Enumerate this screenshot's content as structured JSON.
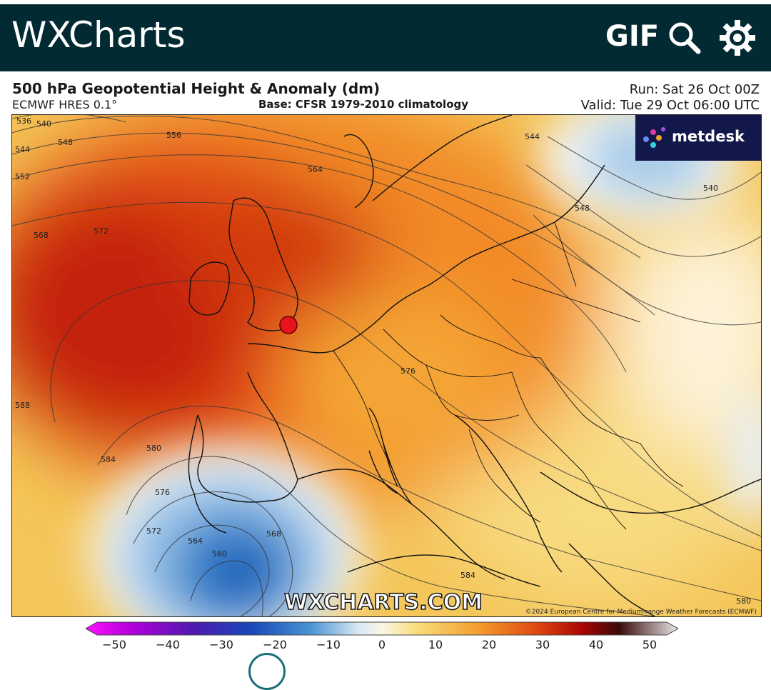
{
  "app": {
    "title": "WXCharts",
    "gif_label": "GIF",
    "icons": {
      "search": "search-icon",
      "settings": "gear-icon"
    }
  },
  "chart": {
    "title": "500 hPa Geopotential Height & Anomaly (dm)",
    "model": "ECMWF HRES 0.1°",
    "base": "Base: CFSR 1979-2010 climatology",
    "run": "Run: Sat 26 Oct 00Z",
    "valid": "Valid: Tue 29 Oct 06:00 UTC",
    "brand_logo": "metdesk",
    "watermark": "WXCHARTS.COM",
    "copyright": "©2024 European Centre for Medium-range Weather Forecasts (ECMWF)",
    "marker_location": "London"
  },
  "contour_labels": [
    "536",
    "540",
    "544",
    "548",
    "552",
    "556",
    "564",
    "568",
    "572",
    "576",
    "580",
    "584",
    "588",
    "560",
    "564",
    "572",
    "568",
    "544",
    "548",
    "540",
    "584",
    "580",
    "576"
  ],
  "colorbar": {
    "ticks": [
      "−50",
      "−40",
      "−30",
      "−20",
      "−10",
      "0",
      "10",
      "20",
      "30",
      "40",
      "50"
    ],
    "colors": [
      "#e800e8",
      "#9000c0",
      "#3018a0",
      "#1050c0",
      "#5aa0d8",
      "#eef6fa",
      "#f6dc7a",
      "#f6a030",
      "#e04010",
      "#a00000",
      "#7a7a7a"
    ]
  }
}
